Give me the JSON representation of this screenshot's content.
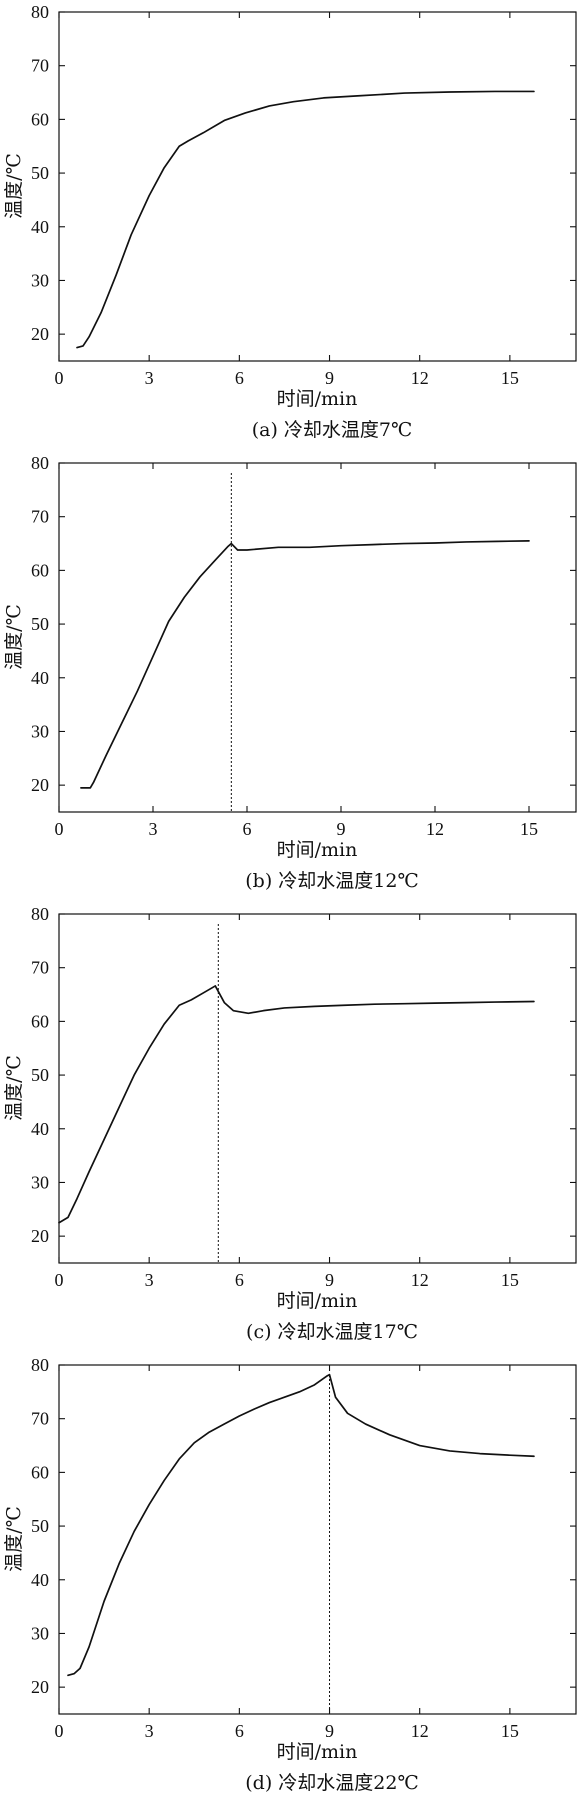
{
  "chart_data": [
    {
      "type": "line",
      "caption": "(a)  冷却水温度7℃",
      "xlabel": "时间/min",
      "ylabel": "温度/℃",
      "xlim": [
        0,
        17.2
      ],
      "ylim": [
        15,
        80
      ],
      "xticks": [
        0,
        3,
        6,
        9,
        12,
        15
      ],
      "yticks": [
        20,
        30,
        40,
        50,
        60,
        70,
        80
      ],
      "grid": false,
      "series": [
        {
          "x": [
            0.6,
            0.8,
            1.0,
            1.4,
            1.9,
            2.4,
            3.0,
            3.5,
            4.0,
            4.3,
            4.8,
            5.5,
            6.2,
            7.0,
            7.8,
            8.8,
            10.0,
            11.5,
            13.0,
            14.5,
            15.8
          ],
          "y": [
            17.5,
            17.8,
            19.5,
            24.0,
            31.0,
            38.5,
            45.8,
            51.0,
            55.0,
            56.0,
            57.5,
            59.8,
            61.2,
            62.5,
            63.3,
            64.0,
            64.4,
            64.9,
            65.1,
            65.2,
            65.2
          ]
        }
      ],
      "markers": []
    },
    {
      "type": "line",
      "caption": "(b)  冷却水温度12℃",
      "xlabel": "时间/min",
      "ylabel": "温度/℃",
      "xlim": [
        0,
        16.5
      ],
      "ylim": [
        15,
        80
      ],
      "xticks": [
        0,
        3,
        6,
        9,
        12,
        15
      ],
      "yticks": [
        20,
        30,
        40,
        50,
        60,
        70,
        80
      ],
      "grid": false,
      "series": [
        {
          "x": [
            0.7,
            1.0,
            1.1,
            1.5,
            2.0,
            2.5,
            3.0,
            3.5,
            4.0,
            4.5,
            5.0,
            5.4,
            5.5,
            5.7,
            6.0,
            7.0,
            8.0,
            9.0,
            10.0,
            11.0,
            12.0,
            13.0,
            14.0,
            15.0
          ],
          "y": [
            19.5,
            19.5,
            20.5,
            25.5,
            31.5,
            37.5,
            44.0,
            50.5,
            55.0,
            58.8,
            62.0,
            64.5,
            65.0,
            63.8,
            63.8,
            64.3,
            64.3,
            64.6,
            64.8,
            65.0,
            65.1,
            65.3,
            65.4,
            65.5
          ]
        }
      ],
      "markers": [
        5.5
      ]
    },
    {
      "type": "line",
      "caption": "(c)  冷却水温度17℃",
      "xlabel": "时间/min",
      "ylabel": "温度/℃",
      "xlim": [
        0,
        17.2
      ],
      "ylim": [
        15,
        80
      ],
      "xticks": [
        0,
        3,
        6,
        9,
        12,
        15
      ],
      "yticks": [
        20,
        30,
        40,
        50,
        60,
        70,
        80
      ],
      "grid": false,
      "series": [
        {
          "x": [
            0.0,
            0.3,
            0.6,
            1.0,
            1.5,
            2.0,
            2.5,
            3.0,
            3.5,
            4.0,
            4.4,
            4.8,
            5.2,
            5.5,
            5.8,
            6.3,
            6.8,
            7.5,
            8.5,
            9.5,
            10.5,
            11.5,
            12.5,
            13.5,
            14.5,
            15.8
          ],
          "y": [
            22.5,
            23.5,
            27.0,
            32.0,
            38.0,
            44.0,
            50.0,
            55.0,
            59.5,
            63.0,
            64.0,
            65.3,
            66.6,
            63.5,
            62.0,
            61.5,
            62.0,
            62.5,
            62.8,
            63.0,
            63.2,
            63.3,
            63.4,
            63.5,
            63.6,
            63.7
          ]
        }
      ],
      "markers": [
        5.3
      ]
    },
    {
      "type": "line",
      "caption": "(d)  冷却水温度22℃",
      "xlabel": "时间/min",
      "ylabel": "温度/℃",
      "xlim": [
        0,
        17.2
      ],
      "ylim": [
        15,
        80
      ],
      "xticks": [
        0,
        3,
        6,
        9,
        12,
        15
      ],
      "yticks": [
        20,
        30,
        40,
        50,
        60,
        70,
        80
      ],
      "grid": false,
      "series": [
        {
          "x": [
            0.3,
            0.5,
            0.7,
            1.0,
            1.5,
            2.0,
            2.5,
            3.0,
            3.5,
            4.0,
            4.5,
            5.0,
            5.5,
            6.0,
            6.5,
            7.0,
            7.5,
            8.0,
            8.5,
            8.9,
            9.0,
            9.2,
            9.6,
            10.2,
            11.0,
            12.0,
            13.0,
            14.0,
            15.0,
            15.8
          ],
          "y": [
            22.2,
            22.5,
            23.5,
            27.5,
            36.0,
            43.0,
            49.0,
            54.0,
            58.5,
            62.5,
            65.5,
            67.5,
            69.0,
            70.5,
            71.8,
            73.0,
            74.0,
            75.0,
            76.3,
            77.9,
            78.2,
            74.0,
            71.0,
            69.0,
            67.0,
            65.0,
            64.0,
            63.5,
            63.2,
            63.0
          ]
        }
      ],
      "markers": [
        9.0
      ]
    }
  ]
}
